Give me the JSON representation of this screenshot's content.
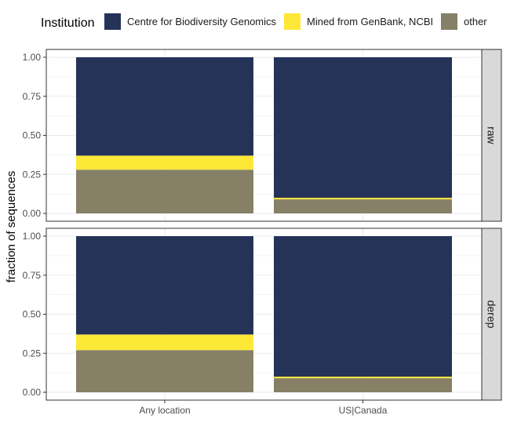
{
  "chart_data": {
    "type": "bar",
    "stacked": true,
    "legend": {
      "title": "Institution",
      "position": "top",
      "entries": [
        {
          "label": "Centre for Biodiversity Genomics",
          "color": "#253359"
        },
        {
          "label": "Mined from GenBank, NCBI",
          "color": "#fde838"
        },
        {
          "label": "other",
          "color": "#868067"
        }
      ]
    },
    "ylabel": "fraction of sequences",
    "xlabel": "",
    "ylim": [
      0,
      1
    ],
    "y_ticks": [
      "0.00",
      "0.25",
      "0.50",
      "0.75",
      "1.00"
    ],
    "y_tick_values": [
      0,
      0.25,
      0.5,
      0.75,
      1.0
    ],
    "categories": [
      "Any location",
      "US|Canada"
    ],
    "grid": true,
    "facets": [
      {
        "label": "raw",
        "series": [
          {
            "name": "other",
            "values": [
              0.28,
              0.09
            ]
          },
          {
            "name": "Mined from GenBank, NCBI",
            "values": [
              0.09,
              0.01
            ]
          },
          {
            "name": "Centre for Biodiversity Genomics",
            "values": [
              0.63,
              0.9
            ]
          }
        ]
      },
      {
        "label": "derep",
        "series": [
          {
            "name": "other",
            "values": [
              0.27,
              0.09
            ]
          },
          {
            "name": "Mined from GenBank, NCBI",
            "values": [
              0.1,
              0.01
            ]
          },
          {
            "name": "Centre for Biodiversity Genomics",
            "values": [
              0.63,
              0.9
            ]
          }
        ]
      }
    ]
  }
}
